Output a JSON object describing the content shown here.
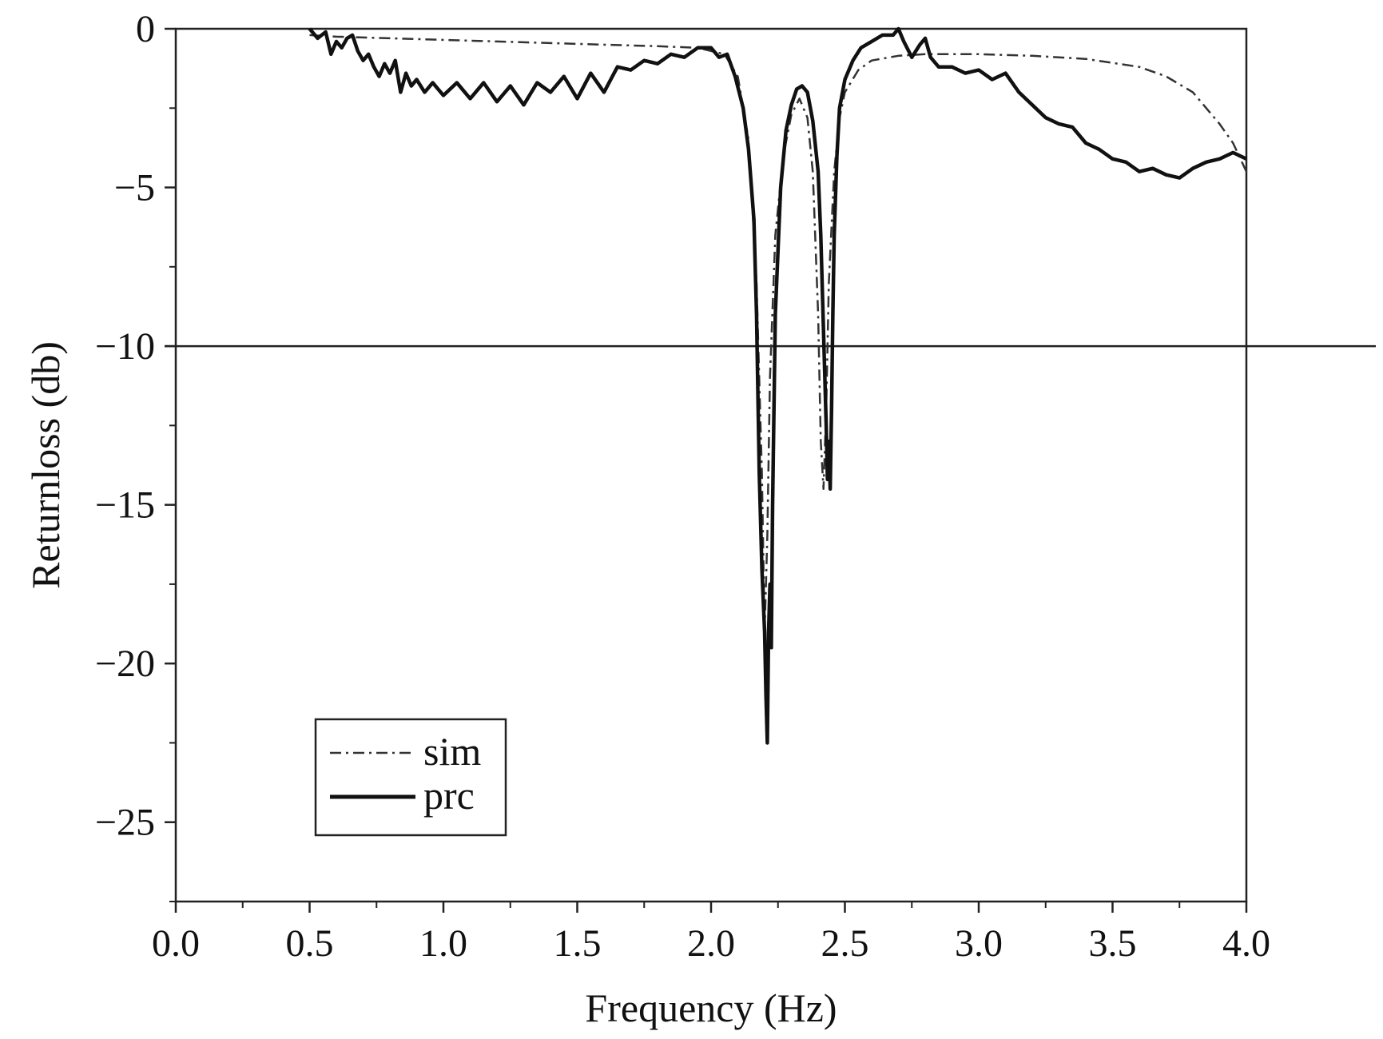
{
  "chart_data": {
    "type": "line",
    "title": "",
    "xlabel": "Frequency (Hz)",
    "ylabel": "Returnloss (db)",
    "xlim": [
      0,
      4
    ],
    "ylim": [
      -27.5,
      0
    ],
    "x_ticks": [
      0.0,
      0.5,
      1.0,
      1.5,
      2.0,
      2.5,
      3.0,
      3.5,
      4.0
    ],
    "x_tick_labels": [
      "0.0",
      "0.5",
      "1.0",
      "1.5",
      "2.0",
      "2.5",
      "3.0",
      "3.5",
      "4.0"
    ],
    "x_minor_step": 0.25,
    "y_ticks": [
      0,
      -5,
      -10,
      -15,
      -20,
      -25
    ],
    "y_tick_labels": [
      "0",
      "−5",
      "−10",
      "−15",
      "−20",
      "−25"
    ],
    "y_minor_step": 2.5,
    "grid": false,
    "reference_line": {
      "y": -10
    },
    "legend": {
      "position": "lower-left"
    },
    "series": [
      {
        "name": "sim",
        "style": "dash-dot",
        "color": "#333333",
        "x": [
          0.5,
          0.6,
          0.8,
          1.0,
          1.2,
          1.4,
          1.6,
          1.8,
          1.95,
          2.05,
          2.1,
          2.14,
          2.17,
          2.19,
          2.2,
          2.21,
          2.22,
          2.24,
          2.27,
          2.3,
          2.33,
          2.36,
          2.38,
          2.4,
          2.41,
          2.42,
          2.43,
          2.44,
          2.46,
          2.48,
          2.5,
          2.55,
          2.6,
          2.7,
          2.8,
          3.0,
          3.2,
          3.4,
          3.6,
          3.7,
          3.8,
          3.85,
          3.9,
          3.95,
          4.0
        ],
        "y": [
          -0.2,
          -0.25,
          -0.3,
          -0.35,
          -0.4,
          -0.45,
          -0.5,
          -0.55,
          -0.6,
          -0.8,
          -1.5,
          -3.5,
          -8,
          -14,
          -19,
          -16,
          -11,
          -6.5,
          -4,
          -2.7,
          -2.2,
          -2.8,
          -4.5,
          -9,
          -13,
          -14.5,
          -12,
          -8,
          -4.5,
          -2.8,
          -2,
          -1.3,
          -1,
          -0.85,
          -0.8,
          -0.8,
          -0.85,
          -0.95,
          -1.2,
          -1.5,
          -2.0,
          -2.5,
          -3.0,
          -3.6,
          -4.5
        ]
      },
      {
        "name": "prc",
        "style": "solid",
        "color": "#111111",
        "x": [
          0.5,
          0.53,
          0.56,
          0.58,
          0.6,
          0.62,
          0.64,
          0.66,
          0.68,
          0.7,
          0.72,
          0.74,
          0.76,
          0.78,
          0.8,
          0.82,
          0.84,
          0.86,
          0.88,
          0.9,
          0.93,
          0.96,
          1.0,
          1.05,
          1.1,
          1.15,
          1.2,
          1.25,
          1.3,
          1.35,
          1.4,
          1.45,
          1.5,
          1.55,
          1.6,
          1.65,
          1.7,
          1.75,
          1.8,
          1.85,
          1.9,
          1.95,
          2.0,
          2.03,
          2.06,
          2.09,
          2.12,
          2.14,
          2.16,
          2.17,
          2.18,
          2.19,
          2.2,
          2.205,
          2.21,
          2.215,
          2.22,
          2.225,
          2.23,
          2.24,
          2.26,
          2.28,
          2.3,
          2.32,
          2.34,
          2.36,
          2.38,
          2.4,
          2.41,
          2.42,
          2.43,
          2.435,
          2.44,
          2.445,
          2.45,
          2.455,
          2.46,
          2.47,
          2.48,
          2.5,
          2.53,
          2.56,
          2.6,
          2.64,
          2.68,
          2.7,
          2.72,
          2.75,
          2.78,
          2.8,
          2.82,
          2.85,
          2.9,
          2.95,
          3.0,
          3.05,
          3.1,
          3.15,
          3.2,
          3.25,
          3.3,
          3.35,
          3.4,
          3.45,
          3.5,
          3.55,
          3.6,
          3.65,
          3.7,
          3.75,
          3.8,
          3.85,
          3.9,
          3.95,
          4.0
        ],
        "y": [
          0,
          -0.3,
          -0.1,
          -0.8,
          -0.4,
          -0.6,
          -0.3,
          -0.2,
          -0.7,
          -1.0,
          -0.8,
          -1.2,
          -1.5,
          -1.1,
          -1.4,
          -1.0,
          -2.0,
          -1.4,
          -1.8,
          -1.6,
          -2.0,
          -1.7,
          -2.1,
          -1.7,
          -2.2,
          -1.7,
          -2.3,
          -1.8,
          -2.4,
          -1.7,
          -2.0,
          -1.5,
          -2.2,
          -1.4,
          -2.0,
          -1.2,
          -1.3,
          -1.0,
          -1.1,
          -0.8,
          -0.9,
          -0.6,
          -0.6,
          -0.9,
          -0.8,
          -1.5,
          -2.5,
          -3.8,
          -6,
          -9,
          -14,
          -17,
          -19,
          -21,
          -22.5,
          -19,
          -17.5,
          -19.5,
          -15,
          -9,
          -5,
          -3.2,
          -2.4,
          -1.9,
          -1.8,
          -2.0,
          -2.9,
          -4.5,
          -6.5,
          -9.5,
          -12.5,
          -14.2,
          -13,
          -14.5,
          -12,
          -9,
          -6.5,
          -4,
          -2.5,
          -1.6,
          -1.0,
          -0.6,
          -0.4,
          -0.2,
          -0.2,
          0,
          -0.4,
          -0.9,
          -0.5,
          -0.3,
          -0.9,
          -1.2,
          -1.2,
          -1.4,
          -1.3,
          -1.6,
          -1.4,
          -2.0,
          -2.4,
          -2.8,
          -3.0,
          -3.1,
          -3.6,
          -3.8,
          -4.1,
          -4.2,
          -4.5,
          -4.4,
          -4.6,
          -4.7,
          -4.4,
          -4.2,
          -4.1,
          -3.9,
          -4.1
        ]
      }
    ]
  }
}
